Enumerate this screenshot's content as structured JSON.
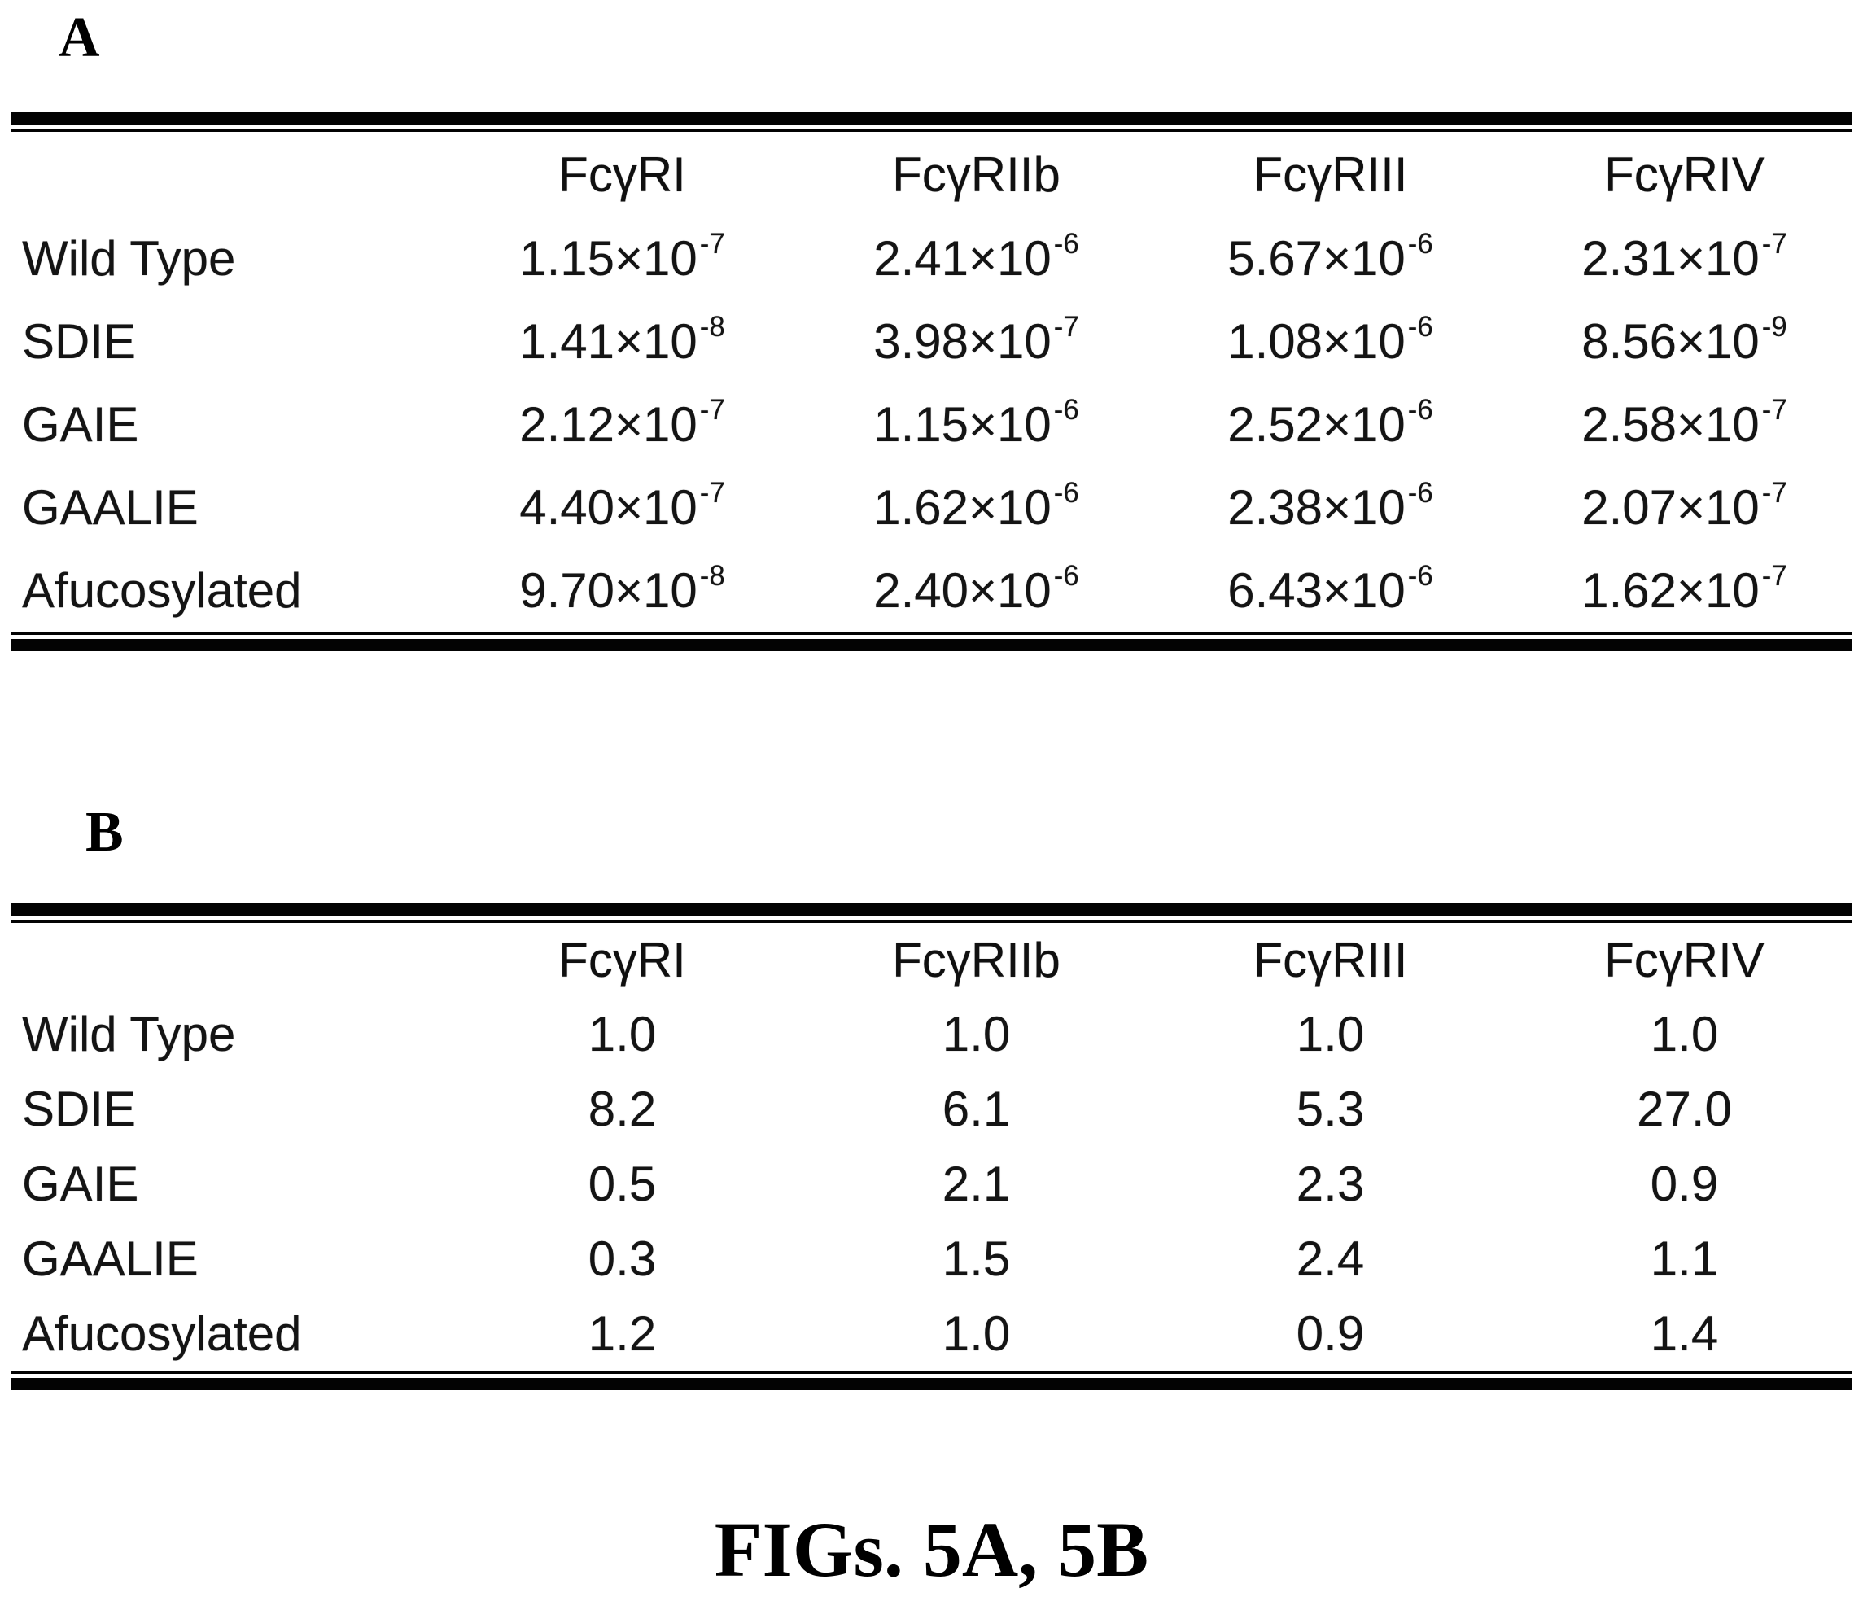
{
  "figure": {
    "caption": "FIGs. 5A, 5B"
  },
  "panels": [
    {
      "label": "A",
      "table": {
        "columns": [
          "FcγRI",
          "FcγRIIb",
          "FcγRIII",
          "FcγRIV"
        ],
        "value_format": "scientific",
        "rows": [
          {
            "label": "Wild Type",
            "values": [
              {
                "m": "1.15",
                "e": "-7"
              },
              {
                "m": "2.41",
                "e": "-6"
              },
              {
                "m": "5.67",
                "e": "-6"
              },
              {
                "m": "2.31",
                "e": "-7"
              }
            ]
          },
          {
            "label": "SDIE",
            "values": [
              {
                "m": "1.41",
                "e": "-8"
              },
              {
                "m": "3.98",
                "e": "-7"
              },
              {
                "m": "1.08",
                "e": "-6"
              },
              {
                "m": "8.56",
                "e": "-9"
              }
            ]
          },
          {
            "label": "GAIE",
            "values": [
              {
                "m": "2.12",
                "e": "-7"
              },
              {
                "m": "1.15",
                "e": "-6"
              },
              {
                "m": "2.52",
                "e": "-6"
              },
              {
                "m": "2.58",
                "e": "-7"
              }
            ]
          },
          {
            "label": "GAALIE",
            "values": [
              {
                "m": "4.40",
                "e": "-7"
              },
              {
                "m": "1.62",
                "e": "-6"
              },
              {
                "m": "2.38",
                "e": "-6"
              },
              {
                "m": "2.07",
                "e": "-7"
              }
            ]
          },
          {
            "label": "Afucosylated",
            "values": [
              {
                "m": "9.70",
                "e": "-8"
              },
              {
                "m": "2.40",
                "e": "-6"
              },
              {
                "m": "6.43",
                "e": "-6"
              },
              {
                "m": "1.62",
                "e": "-7"
              }
            ]
          }
        ]
      }
    },
    {
      "label": "B",
      "table": {
        "columns": [
          "FcγRI",
          "FcγRIIb",
          "FcγRIII",
          "FcγRIV"
        ],
        "value_format": "plain",
        "rows": [
          {
            "label": "Wild Type",
            "values": [
              "1.0",
              "1.0",
              "1.0",
              "1.0"
            ]
          },
          {
            "label": "SDIE",
            "values": [
              "8.2",
              "6.1",
              "5.3",
              "27.0"
            ]
          },
          {
            "label": "GAIE",
            "values": [
              "0.5",
              "2.1",
              "2.3",
              "0.9"
            ]
          },
          {
            "label": "GAALIE",
            "values": [
              "0.3",
              "1.5",
              "2.4",
              "1.1"
            ]
          },
          {
            "label": "Afucosylated",
            "values": [
              "1.2",
              "1.0",
              "0.9",
              "1.4"
            ]
          }
        ]
      }
    }
  ],
  "chart_data": [
    {
      "type": "table",
      "title": "Panel A",
      "columns": [
        "",
        "FcγRI",
        "FcγRIIb",
        "FcγRIII",
        "FcγRIV"
      ],
      "rows": [
        [
          "Wild Type",
          "1.15×10-7",
          "2.41×10-6",
          "5.67×10-6",
          "2.31×10-7"
        ],
        [
          "SDIE",
          "1.41×10-8",
          "3.98×10-7",
          "1.08×10-6",
          "8.56×10-9"
        ],
        [
          "GAIE",
          "2.12×10-7",
          "1.15×10-6",
          "2.52×10-6",
          "2.58×10-7"
        ],
        [
          "GAALIE",
          "4.40×10-7",
          "1.62×10-6",
          "2.38×10-6",
          "2.07×10-7"
        ],
        [
          "Afucosylated",
          "9.70×10-8",
          "2.40×10-6",
          "6.43×10-6",
          "1.62×10-7"
        ]
      ]
    },
    {
      "type": "table",
      "title": "Panel B",
      "columns": [
        "",
        "FcγRI",
        "FcγRIIb",
        "FcγRIII",
        "FcγRIV"
      ],
      "rows": [
        [
          "Wild Type",
          "1.0",
          "1.0",
          "1.0",
          "1.0"
        ],
        [
          "SDIE",
          "8.2",
          "6.1",
          "5.3",
          "27.0"
        ],
        [
          "GAIE",
          "0.5",
          "2.1",
          "2.3",
          "0.9"
        ],
        [
          "GAALIE",
          "0.3",
          "1.5",
          "2.4",
          "1.1"
        ],
        [
          "Afucosylated",
          "1.2",
          "1.0",
          "0.9",
          "1.4"
        ]
      ]
    }
  ]
}
